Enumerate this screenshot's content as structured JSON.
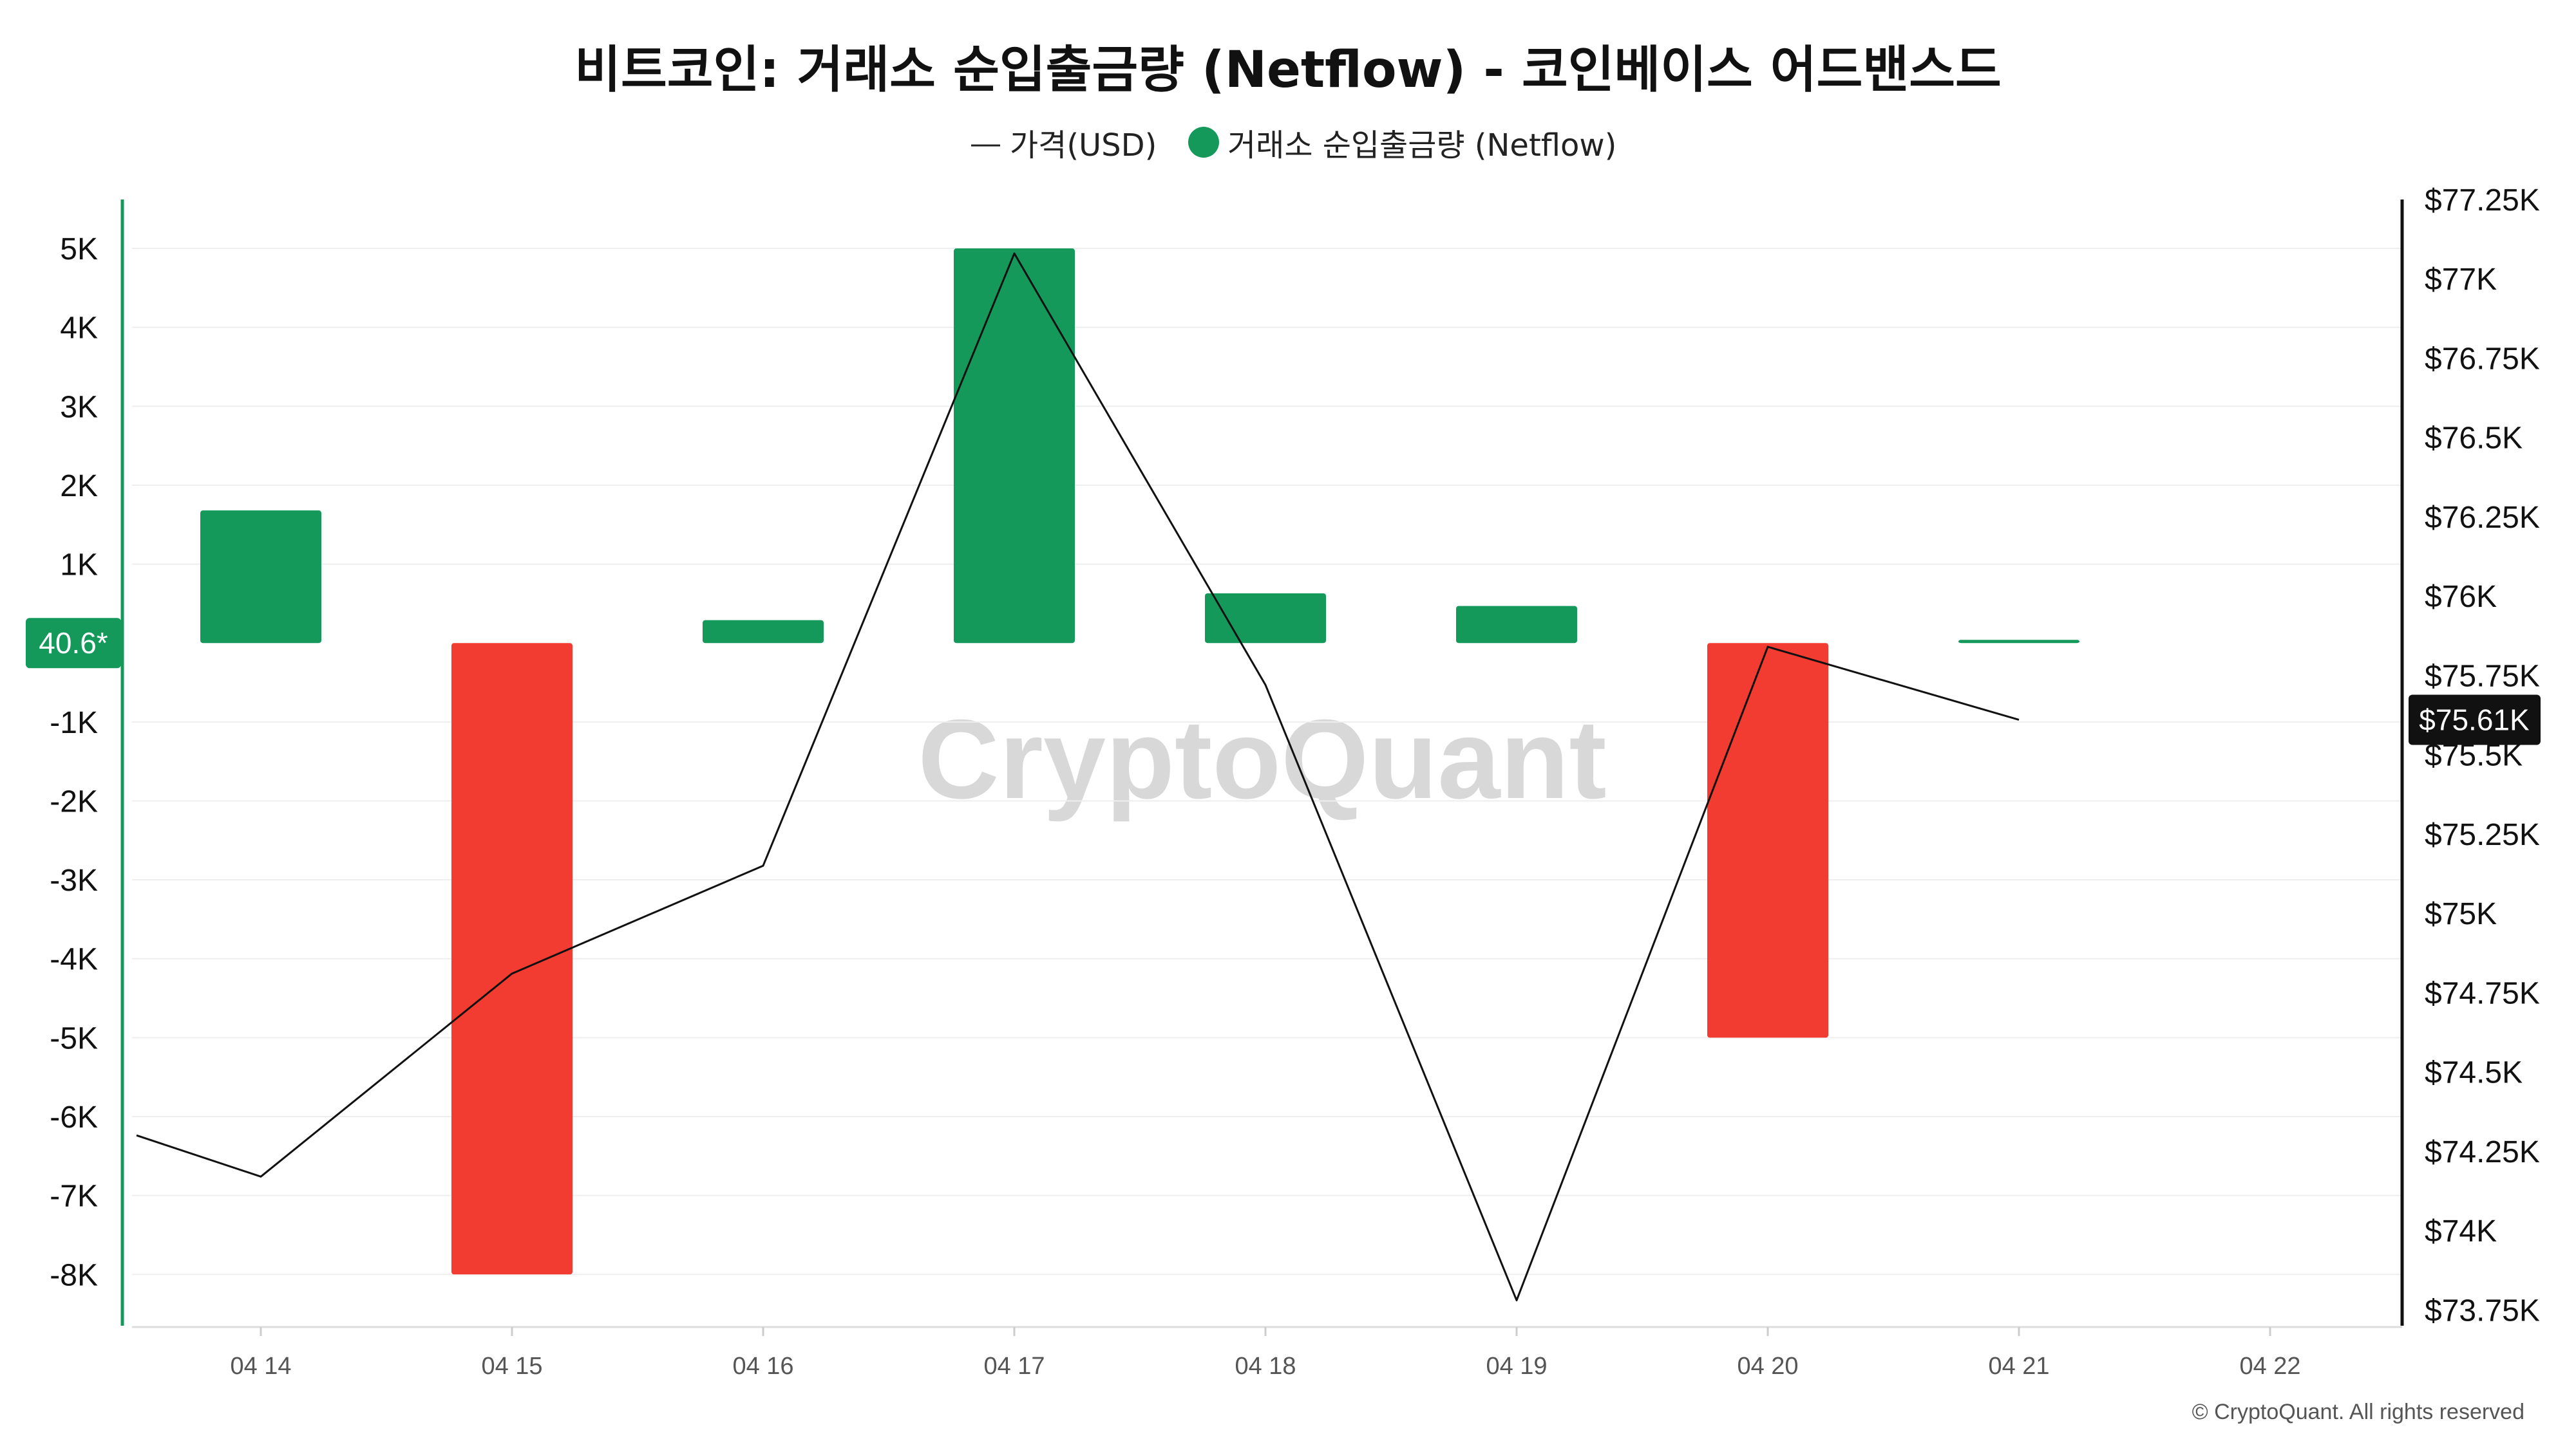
{
  "chart_data": {
    "type": "bar",
    "title": "비트코인: 거래소 순입출금량 (Netflow) - 코인베이스 어드밴스드",
    "categories": [
      "04 14",
      "04 15",
      "04 16",
      "04 17",
      "04 18",
      "04 19",
      "04 20",
      "04 21",
      "04 22"
    ],
    "series": [
      {
        "name": "거래소 순입출금량 (Netflow)",
        "type": "bar",
        "axis": "left",
        "values": [
          1680,
          -8000,
          290,
          5000,
          630,
          470,
          -5000,
          40.6,
          null
        ]
      },
      {
        "name": "가격(USD)",
        "type": "line",
        "axis": "right",
        "values": [
          74170,
          74810,
          75150,
          77080,
          75720,
          73780,
          75840,
          75610,
          null
        ],
        "start_value": 74300
      }
    ],
    "y_left": {
      "ticks": [
        5000,
        4000,
        3000,
        2000,
        1000,
        0,
        -1000,
        -2000,
        -3000,
        -4000,
        -5000,
        -6000,
        -7000,
        -8000
      ],
      "tick_labels": [
        "5K",
        "4K",
        "3K",
        "2K",
        "1K",
        "",
        "-1K",
        "-2K",
        "-3K",
        "-4K",
        "-5K",
        "-6K",
        "-7K",
        "-8K"
      ],
      "ylim": [
        -8650,
        5620
      ]
    },
    "y_right": {
      "ticks": [
        77250,
        77000,
        76750,
        76500,
        76250,
        76000,
        75750,
        75500,
        75250,
        75000,
        74750,
        74500,
        74250,
        74000,
        73750
      ],
      "tick_labels": [
        "$77.25K",
        "$77K",
        "$76.75K",
        "$76.5K",
        "$76.25K",
        "$76K",
        "$75.75K",
        "$75.5K",
        "$75.25K",
        "$75K",
        "$74.75K",
        "$74.5K",
        "$74.25K",
        "$74K",
        "$73.75K"
      ],
      "ylim": [
        73700,
        77250
      ]
    },
    "current_netflow_label": "40.6*",
    "current_price_label": "$75.61K",
    "legend": {
      "placement": "top-center",
      "price_label": "가격(USD)",
      "netflow_label": "거래소 순입출금량 (Netflow)"
    },
    "grid": true,
    "watermark": "CryptoQuant",
    "copyright": "© CryptoQuant. All rights reserved"
  },
  "colors": {
    "positive": "#14995b",
    "negative": "#f23c31",
    "line": "#111111",
    "left_axis": "#14995b",
    "grid": "#eeeeee"
  }
}
